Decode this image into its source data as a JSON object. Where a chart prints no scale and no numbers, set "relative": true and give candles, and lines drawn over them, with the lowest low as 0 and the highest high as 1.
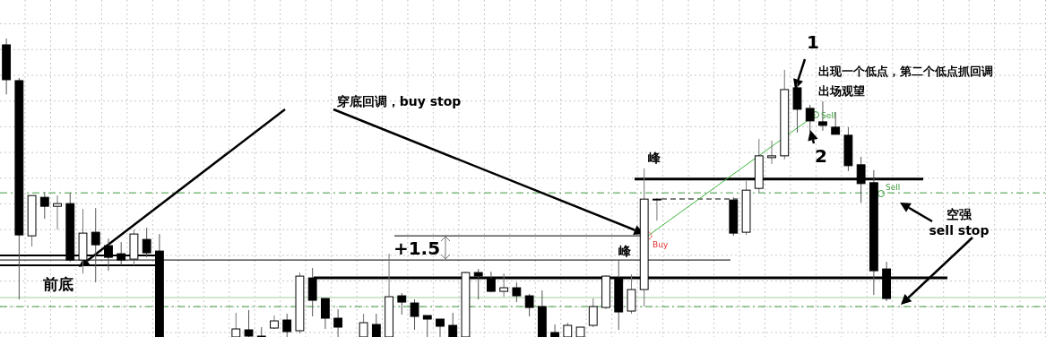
{
  "chart_data": {
    "type": "candlestick",
    "relative": true,
    "grid": true,
    "categories": [
      null,
      null,
      null,
      null,
      null,
      null,
      null,
      null,
      null,
      null,
      null,
      null,
      null,
      null,
      null,
      null,
      null,
      null,
      null,
      null,
      null,
      null,
      null,
      null,
      null,
      null,
      null,
      null,
      null,
      null,
      null,
      null,
      null,
      null,
      null,
      null,
      null,
      null,
      null,
      null,
      null,
      null,
      null,
      null,
      null,
      null,
      null,
      null,
      null,
      null,
      null,
      null,
      null,
      null,
      null,
      null,
      null,
      null,
      null,
      null,
      null,
      null,
      null,
      null,
      null,
      null,
      null,
      null,
      null,
      null,
      null,
      null,
      null,
      null,
      null,
      null,
      null,
      null,
      null,
      null,
      null,
      null
    ],
    "ohlc": [
      [
        0.979,
        1,
        0.813,
        0.862
      ],
      [
        0.859,
        0.868,
        0.126,
        0.342
      ],
      [
        0.339,
        0.474,
        0.303,
        0.474
      ],
      [
        0.468,
        0.486,
        0.396,
        0.438
      ],
      [
        0.438,
        0.474,
        0.36,
        0.447
      ],
      [
        0.447,
        0.483,
        0.252,
        0.258
      ],
      [
        0.258,
        0.429,
        0.213,
        0.348
      ],
      [
        0.351,
        0.432,
        0.183,
        0.309
      ],
      [
        0.306,
        0.33,
        0.222,
        0.267
      ],
      [
        0.279,
        0.318,
        0.24,
        0.258
      ],
      [
        0.261,
        0.36,
        0.24,
        0.345
      ],
      [
        0.327,
        0.366,
        0.267,
        0.282
      ],
      [
        0.288,
        0.345,
        0,
        0
      ],
      null,
      null,
      null,
      null,
      null,
      [
        0,
        0.081,
        0,
        0.027
      ],
      [
        0.024,
        0.09,
        0,
        0.003
      ],
      [
        0.003,
        0.033,
        0,
        0
      ],
      [
        0.03,
        0.072,
        0.027,
        0.054
      ],
      [
        0.057,
        0.078,
        0,
        0.018
      ],
      [
        0.021,
        0.216,
        0.012,
        0.204
      ],
      [
        0.198,
        0.231,
        0.069,
        0.123
      ],
      [
        0.129,
        0.129,
        0.027,
        0.063
      ],
      [
        0.063,
        0.093,
        0,
        0.033
      ],
      null,
      [
        0,
        0.078,
        0,
        0.048
      ],
      [
        0.042,
        0.078,
        0,
        0
      ],
      [
        0,
        0.279,
        0,
        0.135
      ],
      [
        0.138,
        0.147,
        0.075,
        0.117
      ],
      [
        0.114,
        0.126,
        0.024,
        0.069
      ],
      [
        0.072,
        0.072,
        0,
        0.06
      ],
      [
        0.06,
        0.06,
        0,
        0.036
      ],
      [
        0.039,
        0.081,
        0,
        0
      ],
      [
        0,
        0.219,
        0,
        0.216
      ],
      [
        0.216,
        0.228,
        0.126,
        0.204
      ],
      [
        0.195,
        0.219,
        0.15,
        0.153
      ],
      [
        0.153,
        0.213,
        0.135,
        0.165
      ],
      [
        0.165,
        0.183,
        0.117,
        0.138
      ],
      [
        0.138,
        0.144,
        0.069,
        0.099
      ],
      [
        0.102,
        0.156,
        0,
        0
      ],
      [
        0.015,
        0.042,
        0,
        0
      ],
      [
        0,
        0.048,
        0,
        0.039
      ],
      [
        0,
        0.033,
        0,
        0.033
      ],
      [
        0.039,
        0.129,
        0.033,
        0.102
      ],
      [
        0.099,
        0.207,
        0.093,
        0.204
      ],
      [
        0.198,
        0.258,
        0.024,
        0.084
      ],
      [
        0.087,
        0.21,
        0.078,
        0.159
      ],
      [
        0.159,
        0.565,
        0.102,
        0.462
      ],
      [
        0.462,
        0.465,
        0.39,
        0.462
      ],
      null,
      null,
      null,
      null,
      null,
      [
        0.459,
        0.468,
        0.339,
        0.348
      ],
      [
        0.351,
        0.523,
        0.342,
        0.492
      ],
      [
        0.498,
        0.664,
        0.483,
        0.607
      ],
      [
        0.601,
        0.658,
        0.58,
        0.607
      ],
      [
        0.607,
        0.895,
        0.595,
        0.829
      ],
      [
        0.835,
        0.853,
        0.685,
        0.763
      ],
      [
        0.766,
        0.778,
        0.685,
        0.724
      ],
      [
        0.721,
        0.79,
        0.691,
        0.709
      ],
      [
        0.703,
        0.754,
        0.679,
        0.679
      ],
      [
        0.676,
        0.703,
        0.556,
        0.574
      ],
      [
        0.577,
        0.604,
        0.45,
        0.514
      ],
      [
        0.517,
        0.559,
        0.141,
        0.222
      ],
      [
        0.228,
        0.252,
        0.12,
        0.129
      ],
      null,
      null,
      null,
      null,
      null,
      null,
      null,
      null,
      null,
      null,
      null,
      null
    ],
    "ref_lines": [
      {
        "axis": "y",
        "value": 0.483,
        "color": "#3c9a3c",
        "line_style": "dashed"
      },
      {
        "axis": "y",
        "value": 0.102,
        "color": "#3c9a3c",
        "line_style": "dashed"
      },
      {
        "axis": "y",
        "value": 0.132,
        "color": "#cfe6cf",
        "line_style": "solid"
      },
      {
        "axis": "y",
        "value": 0.198,
        "color": "#000000",
        "line_style": "solid"
      },
      {
        "axis": "y",
        "value": 0.529,
        "color": "#000000",
        "line_style": "solid"
      },
      {
        "axis": "y",
        "value": 0.339,
        "color": "#000000",
        "line_style": "solid"
      },
      {
        "axis": "y",
        "value": 0.258,
        "color": "#000000",
        "line_style": "solid"
      },
      {
        "axis": "y",
        "value": 0.273,
        "color": "#000000",
        "line_style": "solid"
      },
      {
        "axis": "y",
        "value": 0.24,
        "color": "#000000",
        "line_style": "solid"
      }
    ],
    "annotations": [
      "穿底回调，buy stop",
      "前底",
      "峰",
      "峰",
      "+1.5",
      "1",
      "2",
      "出现一个低点，第二个低点抓回调",
      "出场观望",
      "空强\nsell stop",
      "Buy",
      "Sell",
      "Sell"
    ]
  }
}
